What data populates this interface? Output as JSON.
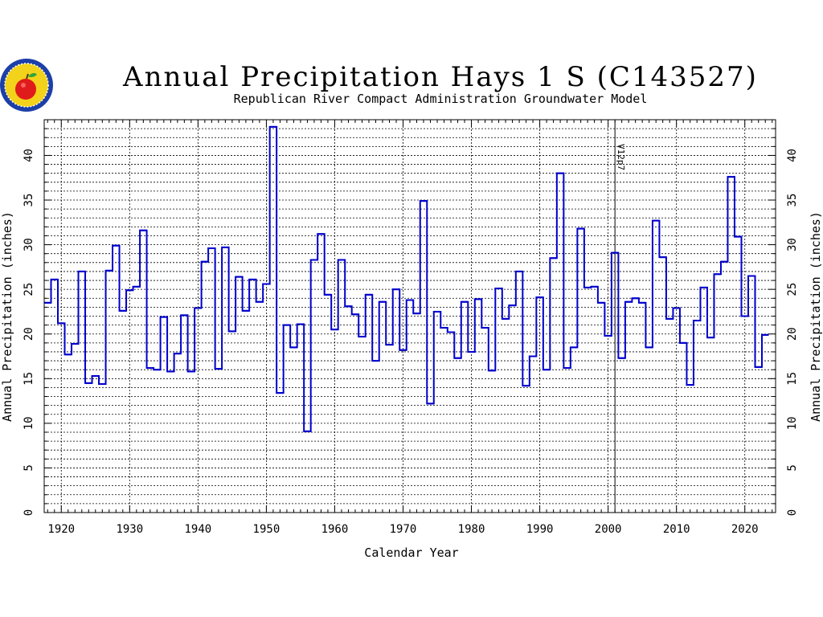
{
  "logo": {
    "icon": "apple-seal-logo"
  },
  "chart_data": {
    "type": "line",
    "step": "year-step",
    "title": "Annual Precipitation Hays 1 S (C143527)",
    "subtitle": "Republican River Compact Administration Groundwater Model",
    "xlabel": "Calendar Year",
    "ylabel": "Annual Precipitation (inches)",
    "ylabel_right": "Annual Precipitation (inches)",
    "xlim": [
      1917.5,
      2024.5
    ],
    "ylim": [
      0,
      44
    ],
    "x_ticks": [
      1920,
      1930,
      1940,
      1950,
      1960,
      1970,
      1980,
      1990,
      2000,
      2010,
      2020
    ],
    "y_ticks": [
      0,
      5,
      10,
      15,
      20,
      25,
      30,
      35,
      40
    ],
    "grid": true,
    "line_color": "#0000cc",
    "annotation": {
      "text": "V12p7",
      "x": 2001
    },
    "series": [
      {
        "x": [
          1918,
          1919,
          1920,
          1921,
          1922,
          1923,
          1924,
          1925,
          1926,
          1927,
          1928,
          1929,
          1930,
          1931,
          1932,
          1933,
          1934,
          1935,
          1936,
          1937,
          1938,
          1939,
          1940,
          1941,
          1942,
          1943,
          1944,
          1945,
          1946,
          1947,
          1948,
          1949,
          1950,
          1951,
          1952,
          1953,
          1954,
          1955,
          1956,
          1957,
          1958,
          1959,
          1960,
          1961,
          1962,
          1963,
          1964,
          1965,
          1966,
          1967,
          1968,
          1969,
          1970,
          1971,
          1972,
          1973,
          1974,
          1975,
          1976,
          1977,
          1978,
          1979,
          1980,
          1981,
          1982,
          1983,
          1984,
          1985,
          1986,
          1987,
          1988,
          1989,
          1990,
          1991,
          1992,
          1993,
          1994,
          1995,
          1996,
          1997,
          1998,
          1999,
          2000,
          2001,
          2002,
          2003,
          2004,
          2005,
          2006,
          2007,
          2008,
          2009,
          2010,
          2011,
          2012,
          2013,
          2014,
          2015,
          2016,
          2017,
          2018,
          2019,
          2020,
          2021,
          2022,
          2023
        ],
        "values": [
          23.5,
          26.1,
          21.2,
          17.7,
          18.9,
          27.0,
          14.5,
          15.3,
          14.4,
          27.1,
          29.9,
          22.6,
          24.9,
          25.3,
          31.6,
          16.2,
          16.0,
          21.9,
          15.8,
          17.8,
          22.1,
          15.8,
          22.9,
          28.1,
          29.6,
          16.1,
          29.7,
          20.3,
          26.4,
          22.6,
          26.1,
          23.6,
          25.6,
          43.2,
          13.4,
          21.0,
          18.5,
          21.1,
          9.1,
          28.3,
          31.2,
          24.4,
          20.5,
          28.3,
          23.1,
          22.2,
          19.7,
          24.4,
          17.0,
          23.6,
          18.8,
          25.0,
          18.2,
          23.8,
          22.3,
          34.9,
          12.2,
          22.5,
          20.7,
          20.2,
          17.3,
          23.6,
          18.0,
          23.9,
          20.7,
          15.9,
          25.1,
          21.7,
          23.2,
          27.0,
          14.2,
          17.5,
          24.1,
          16.0,
          28.5,
          38.0,
          16.2,
          18.5,
          31.8,
          25.2,
          25.3,
          23.5,
          19.8,
          29.1,
          17.3,
          23.6,
          24.0,
          23.5,
          18.5,
          32.7,
          28.6,
          21.7,
          22.9,
          19.0,
          14.3,
          21.5,
          25.2,
          19.6,
          26.7,
          28.1,
          37.6,
          30.9,
          22.0,
          26.5,
          16.3,
          19.9
        ]
      }
    ]
  }
}
